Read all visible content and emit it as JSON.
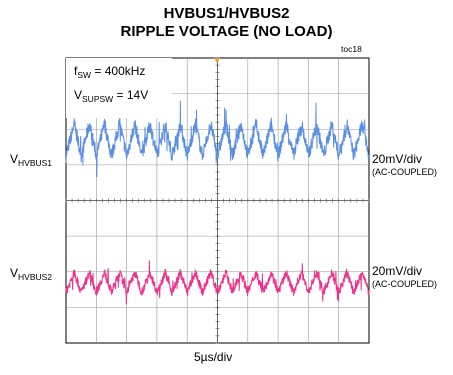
{
  "title_line1": "HVBUS1/HVBUS2",
  "title_line2": "RIPPLE VOLTAGE (NO LOAD)",
  "figure_tag": "toc18",
  "conditions": [
    {
      "symbol": "f",
      "subscript": "SW",
      "value": "= 400kHz"
    },
    {
      "symbol": "V",
      "subscript": "SUPSW",
      "value": "= 14V"
    }
  ],
  "traces": [
    {
      "label_main": "V",
      "label_sub": "HVBUS1",
      "scale": "20mV/div",
      "coupling": "(AC-COUPLED)",
      "color": "#5b8fe6"
    },
    {
      "label_main": "V",
      "label_sub": "HVBUS2",
      "scale": "20mV/div",
      "coupling": "(AC-COUPLED)",
      "color": "#f0308a"
    }
  ],
  "time_scale": "5µs/div",
  "chart_data": {
    "type": "line",
    "grid": true,
    "divisions": {
      "horizontal": 10,
      "vertical": 8
    },
    "series": [
      {
        "name": "VHVBUS1",
        "scale_per_div": "20mV",
        "ripple_peak_to_peak_mV": 32,
        "cycles_shown": 20,
        "switching_frequency_kHz": 400
      },
      {
        "name": "VHVBUS2",
        "scale_per_div": "20mV",
        "ripple_peak_to_peak_mV": 20,
        "cycles_shown": 20,
        "switching_frequency_kHz": 400
      }
    ],
    "time_per_div": "5µs"
  }
}
